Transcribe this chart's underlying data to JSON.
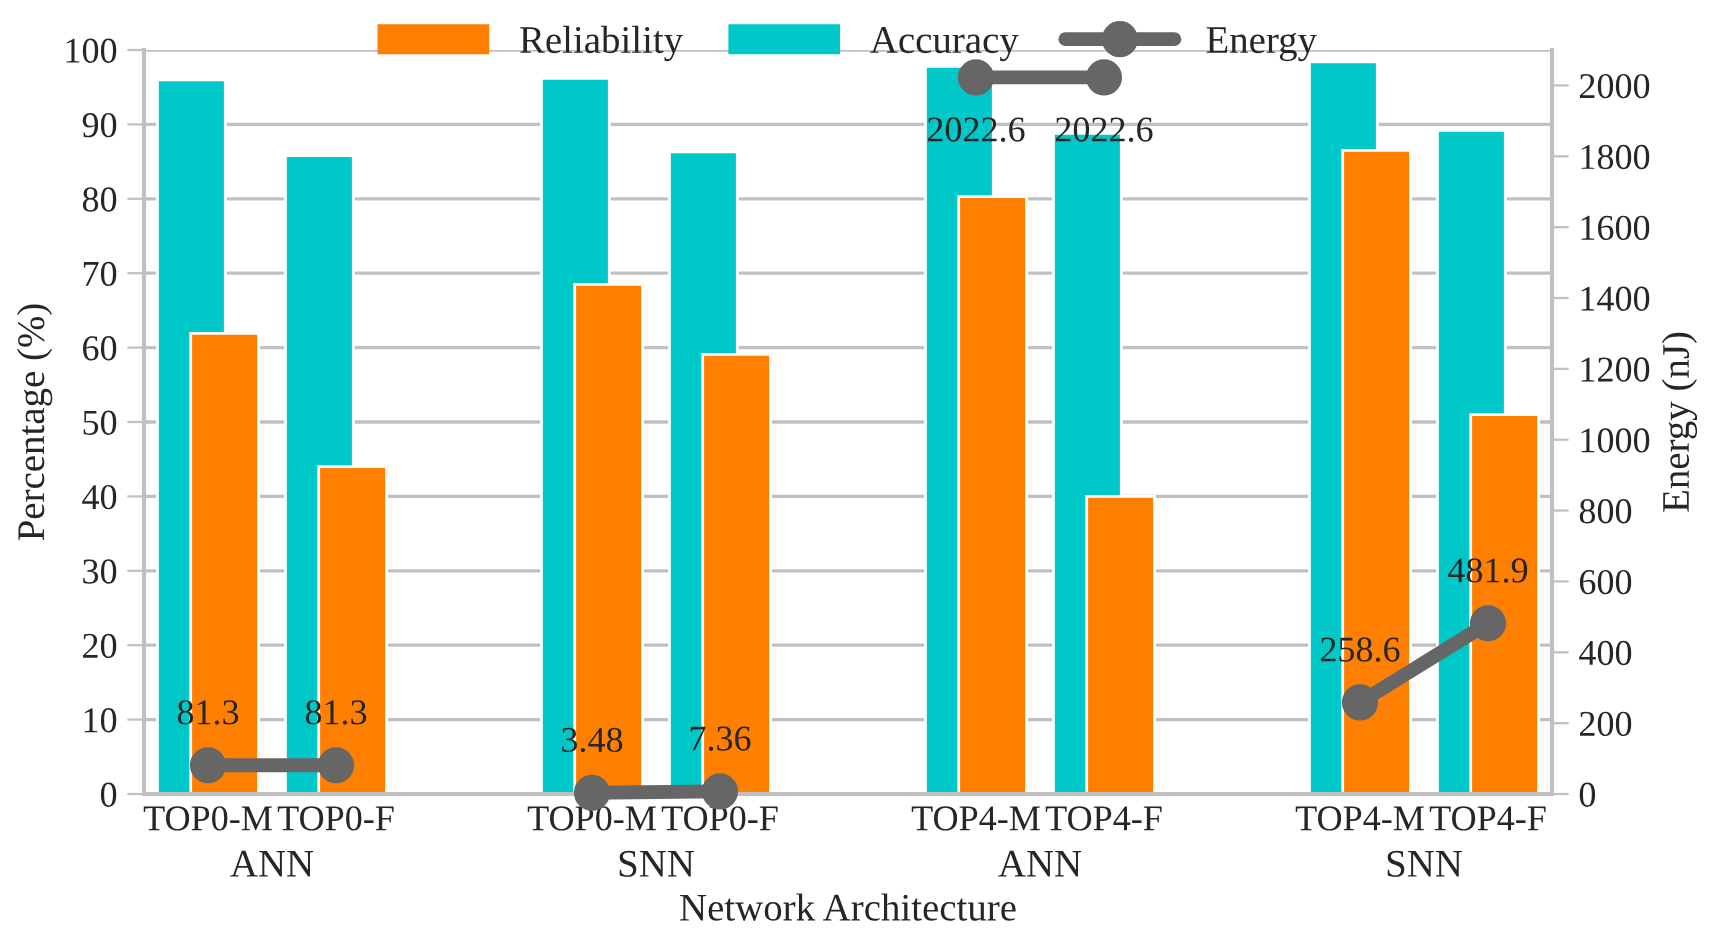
{
  "chart_data": {
    "type": "bar",
    "categories": [
      "TOP0-M",
      "TOP0-F",
      null,
      "TOP0-M",
      "TOP0-F",
      null,
      "TOP4-M",
      "TOP4-F",
      null,
      "TOP4-M",
      "TOP4-F"
    ],
    "series": [
      {
        "name": "Reliability",
        "color": "#ff7f00",
        "values": [
          61.9,
          44.0,
          null,
          68.5,
          59.1,
          null,
          80.3,
          40.0,
          null,
          86.5,
          51.0
        ]
      },
      {
        "name": "Accuracy",
        "color": "#00c8c8",
        "values": [
          96.0,
          85.8,
          null,
          96.2,
          86.3,
          null,
          97.8,
          88.8,
          null,
          98.4,
          89.2
        ]
      },
      {
        "name": "Energy",
        "type": "line",
        "axis": "y2",
        "color": "#666666",
        "marker": "circle",
        "data_labels": true,
        "values": [
          81.3,
          81.3,
          null,
          3.48,
          7.36,
          null,
          2022.6,
          2022.6,
          null,
          258.6,
          481.9
        ]
      }
    ],
    "xlabel": "Network Architecture",
    "ylabel": "Percentage (%)",
    "y2label": "Energy (nJ)",
    "annotations": [
      "ANN",
      "SNN",
      "ANN",
      "SNN"
    ],
    "ylim": [
      0,
      100
    ],
    "yticks": [
      0,
      10,
      20,
      30,
      40,
      50,
      60,
      70,
      80,
      90,
      100
    ],
    "y2lim": [
      0,
      2100
    ],
    "y2ticks": [
      0,
      200,
      400,
      600,
      800,
      1000,
      1200,
      1400,
      1600,
      1800,
      2000
    ],
    "grid": "y",
    "legend": "top"
  }
}
